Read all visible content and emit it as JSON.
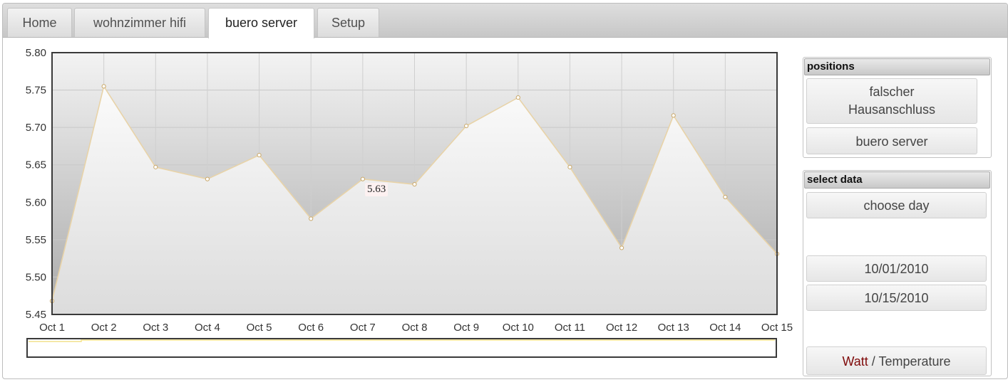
{
  "tabs": [
    {
      "label": "Home",
      "active": false
    },
    {
      "label": "wohnzimmer hifi",
      "active": false
    },
    {
      "label": "buero server",
      "active": true
    },
    {
      "label": "Setup",
      "active": false
    }
  ],
  "positions": {
    "title": "positions",
    "items": [
      {
        "label_line1": "falscher",
        "label_line2": "Hausanschluss"
      },
      {
        "label": "buero server"
      }
    ]
  },
  "select_data": {
    "title": "select data",
    "choose_day": "choose day",
    "start_date": "10/01/2010",
    "end_date": "10/15/2010",
    "mode_watt": "Watt",
    "mode_separator": " / ",
    "mode_temperature": "Temperature"
  },
  "tooltip": {
    "value": "5.63"
  },
  "colors": {
    "line": "#e8d3a8",
    "marker": "#ffffff",
    "watt_label": "#7f0a0a"
  },
  "chart_data": {
    "type": "area",
    "categories": [
      "Oct 1",
      "Oct 2",
      "Oct 3",
      "Oct 4",
      "Oct 5",
      "Oct 6",
      "Oct 7",
      "Oct 8",
      "Oct 9",
      "Oct 10",
      "Oct 11",
      "Oct 12",
      "Oct 13",
      "Oct 14",
      "Oct 15"
    ],
    "values": [
      5.468,
      5.755,
      5.647,
      5.631,
      5.663,
      5.578,
      5.631,
      5.624,
      5.702,
      5.74,
      5.647,
      5.539,
      5.716,
      5.607,
      5.531
    ],
    "yticks": [
      "5.80",
      "5.75",
      "5.70",
      "5.65",
      "5.60",
      "5.55",
      "5.50",
      "5.45"
    ],
    "ylim": [
      5.45,
      5.8
    ],
    "title": "",
    "xlabel": "",
    "ylabel": "",
    "grid": true,
    "highlighted_point": {
      "category": "Oct 7",
      "value": 5.63
    }
  }
}
